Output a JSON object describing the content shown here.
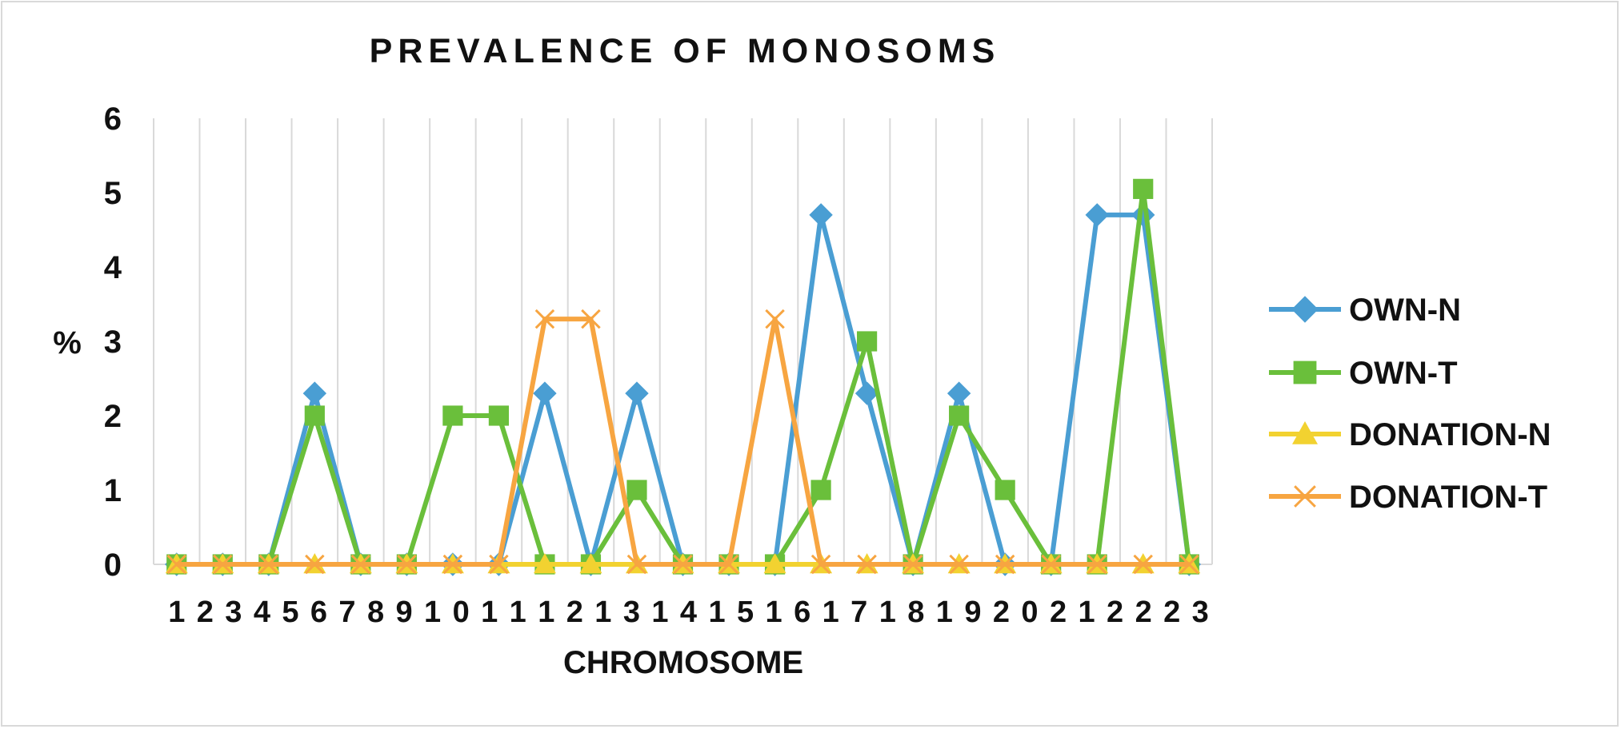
{
  "chart_data": {
    "type": "line",
    "title": "PREVALENCE OF MONOSOMS",
    "xlabel": "CHROMOSOME",
    "ylabel": "%",
    "ylim": [
      0,
      6
    ],
    "yticks": [
      "0",
      "1",
      "2",
      "3",
      "4",
      "5",
      "6"
    ],
    "grid": "vertical",
    "legend": "right",
    "categories": [
      "1",
      "2",
      "3",
      "4",
      "5",
      "6",
      "7",
      "8",
      "9",
      "10",
      "11",
      "12",
      "13",
      "14",
      "15",
      "16",
      "17",
      "18",
      "19",
      "20",
      "21",
      "22",
      "23"
    ],
    "tick_labels": [
      "1",
      "2",
      "3",
      "4",
      "5",
      "6",
      "7",
      "8",
      "9",
      "1",
      "0",
      "1",
      "1",
      "1",
      "2",
      "1",
      "3",
      "1",
      "4",
      "1",
      "5",
      "1",
      "6",
      "1",
      "7",
      "1",
      "8",
      "1",
      "9",
      "2",
      "0",
      "2",
      "1",
      "2",
      "2",
      "2",
      "3"
    ],
    "series": [
      {
        "name": "OWN-N",
        "color": "#4a9ed3",
        "marker": "diamond",
        "values": [
          0,
          0,
          0,
          2.3,
          0,
          0,
          0,
          0,
          2.3,
          0,
          2.3,
          0,
          0,
          0,
          4.7,
          2.3,
          0,
          2.3,
          0,
          0,
          4.7,
          4.7,
          0
        ]
      },
      {
        "name": "OWN-T",
        "color": "#6abf3b",
        "marker": "square",
        "values": [
          0,
          0,
          0,
          2.0,
          0,
          0,
          2.0,
          2.0,
          0,
          0,
          1.0,
          0,
          0,
          0,
          1.0,
          3.0,
          0,
          2.0,
          1.0,
          0,
          0,
          5.05,
          0
        ]
      },
      {
        "name": "DONATION-N",
        "color": "#f2d230",
        "marker": "triangle",
        "values": [
          0,
          0,
          0,
          0,
          0,
          0,
          0,
          0,
          0,
          0,
          0,
          0,
          0,
          0,
          0,
          0,
          0,
          0,
          0,
          0,
          0,
          0,
          0
        ]
      },
      {
        "name": "DONATION-T",
        "color": "#f7a541",
        "marker": "x",
        "values": [
          0,
          0,
          0,
          0,
          0,
          0,
          0,
          0,
          3.3,
          3.3,
          0,
          0,
          0,
          3.3,
          0,
          0,
          0,
          0,
          0,
          0,
          0,
          0,
          0
        ]
      }
    ]
  }
}
